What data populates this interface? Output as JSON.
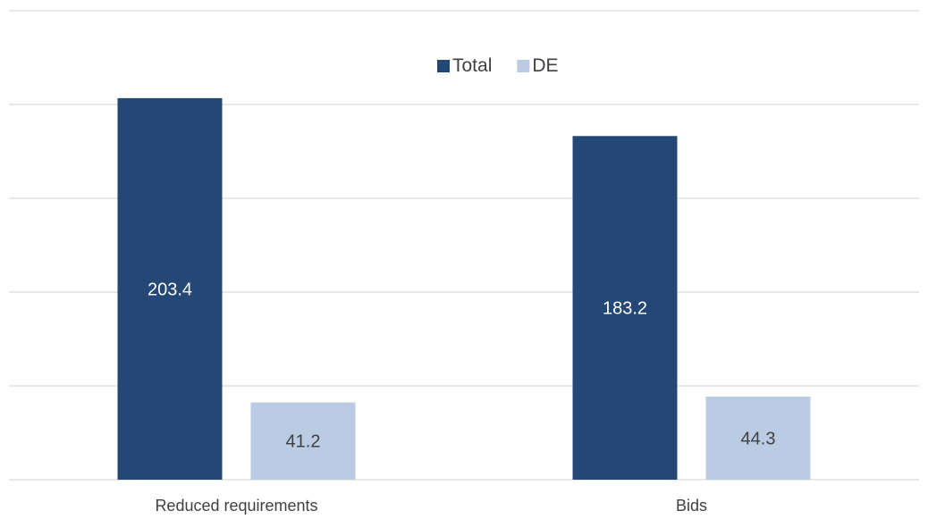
{
  "chart_data": {
    "type": "bar",
    "categories": [
      "Reduced requirements",
      "Bids"
    ],
    "series": [
      {
        "name": "Total",
        "values": [
          203.4,
          183.2
        ],
        "color": "#254776",
        "label_color": "#ffffff"
      },
      {
        "name": "DE",
        "values": [
          41.2,
          44.3
        ],
        "color": "#b9cce4",
        "label_color": "#404040"
      }
    ],
    "ylim": [
      0,
      250
    ],
    "grid": true,
    "legend_position": "top-center",
    "title": "",
    "xlabel": "",
    "ylabel": ""
  }
}
